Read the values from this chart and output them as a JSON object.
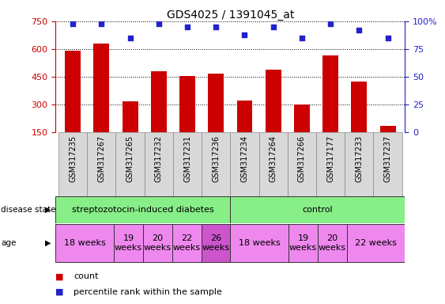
{
  "title": "GDS4025 / 1391045_at",
  "samples": [
    "GSM317235",
    "GSM317267",
    "GSM317265",
    "GSM317232",
    "GSM317231",
    "GSM317236",
    "GSM317234",
    "GSM317264",
    "GSM317266",
    "GSM317177",
    "GSM317233",
    "GSM317237"
  ],
  "counts": [
    590,
    630,
    315,
    480,
    455,
    465,
    320,
    490,
    300,
    565,
    425,
    185
  ],
  "percentiles": [
    98,
    98,
    85,
    98,
    95,
    95,
    88,
    95,
    85,
    98,
    92,
    85
  ],
  "ylim_left": [
    150,
    750
  ],
  "ylim_right": [
    0,
    100
  ],
  "yticks_left": [
    150,
    300,
    450,
    600,
    750
  ],
  "yticks_right": [
    0,
    25,
    50,
    75,
    100
  ],
  "bar_color": "#cc0000",
  "dot_color": "#2222cc",
  "disease_groups": [
    {
      "label": "streptozotocin-induced diabetes",
      "start": 0,
      "end": 6,
      "color": "#88ee88"
    },
    {
      "label": "control",
      "start": 6,
      "end": 12,
      "color": "#88ee88"
    }
  ],
  "age_groups": [
    {
      "label": "18 weeks",
      "start": 0,
      "end": 2,
      "color": "#ee88ee"
    },
    {
      "label": "19\nweeks",
      "start": 2,
      "end": 3,
      "color": "#ee88ee"
    },
    {
      "label": "20\nweeks",
      "start": 3,
      "end": 4,
      "color": "#ee88ee"
    },
    {
      "label": "22\nweeks",
      "start": 4,
      "end": 5,
      "color": "#ee88ee"
    },
    {
      "label": "26\nweeks",
      "start": 5,
      "end": 6,
      "color": "#cc55cc"
    },
    {
      "label": "18 weeks",
      "start": 6,
      "end": 8,
      "color": "#ee88ee"
    },
    {
      "label": "19\nweeks",
      "start": 8,
      "end": 9,
      "color": "#ee88ee"
    },
    {
      "label": "20\nweeks",
      "start": 9,
      "end": 10,
      "color": "#ee88ee"
    },
    {
      "label": "22 weeks",
      "start": 10,
      "end": 12,
      "color": "#ee88ee"
    }
  ],
  "left_axis_color": "#cc0000",
  "right_axis_color": "#2222cc",
  "label_fontsize": 8,
  "tick_fontsize": 8,
  "sample_fontsize": 7
}
